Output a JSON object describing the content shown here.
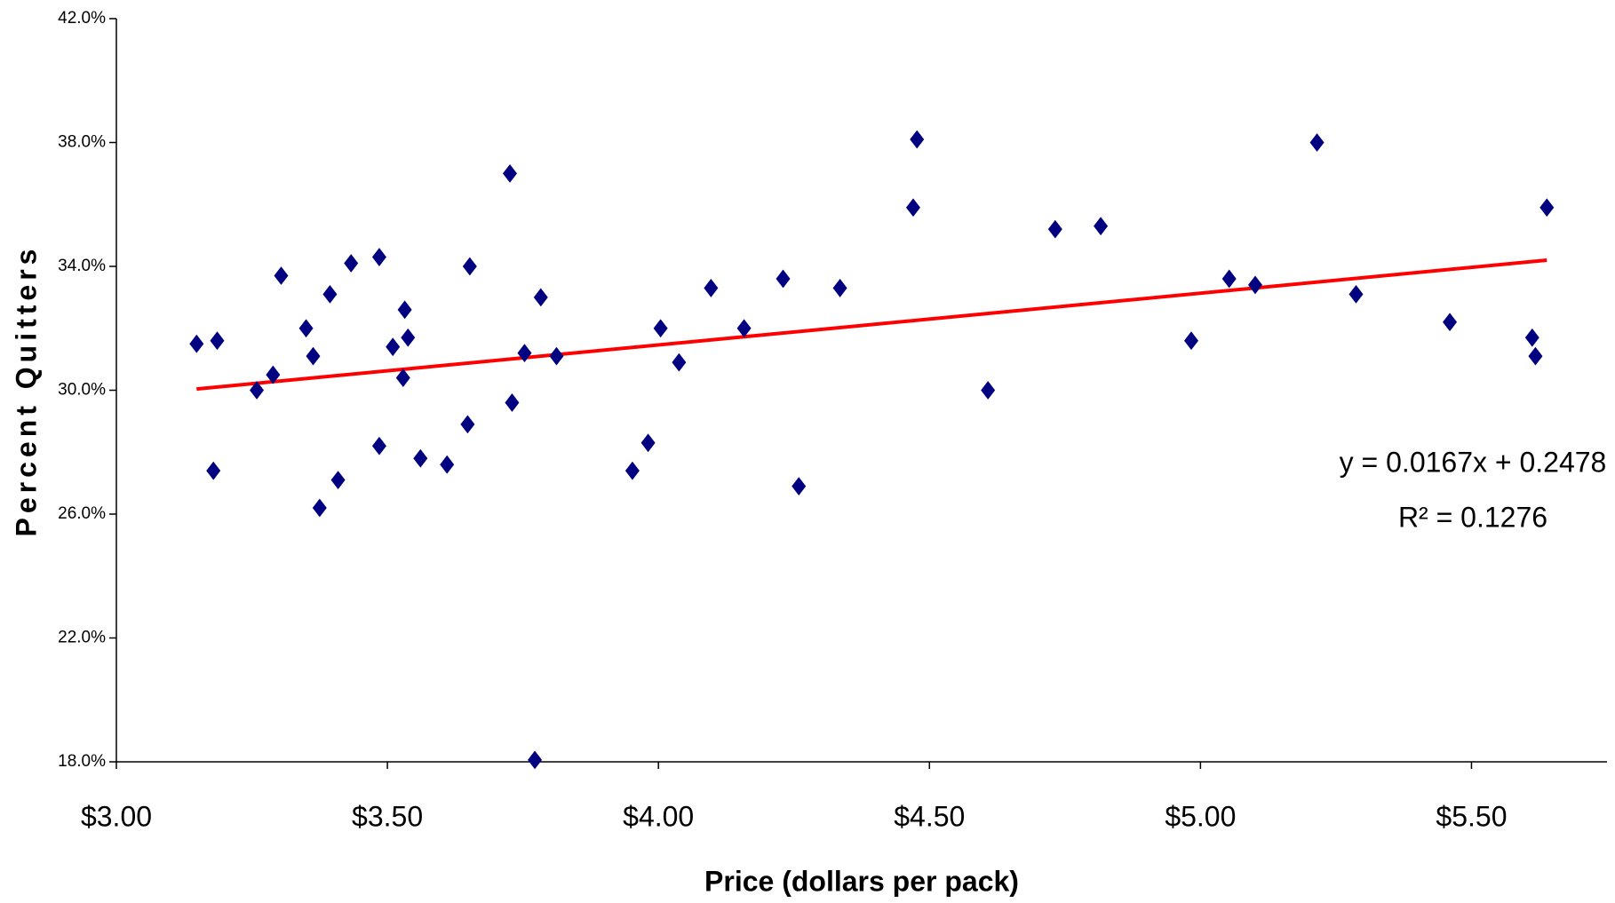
{
  "chart_data": {
    "type": "scatter",
    "x_label": "Price (dollars per pack)",
    "y_label": "Percent Quitters",
    "xlim": [
      3,
      5.75
    ],
    "ylim": [
      18,
      42
    ],
    "xticks": [
      {
        "value": 3,
        "label": "$3.00"
      },
      {
        "value": 3.5,
        "label": "$3.50"
      },
      {
        "value": 4,
        "label": "$4.00"
      },
      {
        "value": 4.5,
        "label": "$4.50"
      },
      {
        "value": 5,
        "label": "$5.00"
      },
      {
        "value": 5.5,
        "label": "$5.50"
      }
    ],
    "yticks": [
      {
        "value": 18,
        "label": "18.0%"
      },
      {
        "value": 22,
        "label": "22.0%"
      },
      {
        "value": 26,
        "label": "26.0%"
      },
      {
        "value": 30,
        "label": "30.0%"
      },
      {
        "value": 34,
        "label": "34.0%"
      },
      {
        "value": 38,
        "label": "38.0%"
      },
      {
        "value": 42,
        "label": "42.0%"
      }
    ],
    "color": "#000080",
    "x": [
      3.148,
      3.179,
      3.186,
      3.259,
      3.289,
      3.304,
      3.35,
      3.363,
      3.375,
      3.394,
      3.409,
      3.433,
      3.485,
      3.485,
      3.51,
      3.529,
      3.532,
      3.538,
      3.561,
      3.61,
      3.648,
      3.652,
      3.726,
      3.73,
      3.753,
      3.772,
      3.783,
      3.812,
      3.952,
      3.981,
      4.004,
      4.038,
      4.097,
      4.158,
      4.23,
      4.259,
      4.335,
      4.47,
      4.477,
      4.608,
      4.732,
      4.816,
      4.983,
      5.053,
      5.101,
      5.215,
      5.287,
      5.46,
      5.612,
      5.618,
      5.639
    ],
    "values": [
      31.5,
      27.4,
      31.6,
      30.0,
      30.5,
      33.7,
      32.0,
      31.1,
      26.2,
      33.1,
      27.1,
      34.1,
      34.3,
      28.2,
      31.4,
      30.4,
      32.6,
      31.7,
      27.8,
      27.6,
      28.9,
      34.0,
      37.0,
      29.6,
      31.2,
      18.06,
      33.0,
      31.1,
      27.4,
      28.3,
      32.0,
      30.9,
      33.3,
      32.0,
      33.6,
      26.9,
      33.3,
      35.9,
      38.1,
      30.0,
      35.2,
      35.3,
      31.6,
      33.6,
      33.4,
      38.0,
      33.1,
      32.2,
      31.7,
      31.1,
      35.9
    ],
    "trendline": {
      "color": "#ff0000",
      "x": [
        3.148,
        5.639
      ],
      "values": [
        30.04,
        34.2
      ]
    },
    "annotations": [
      "y = 0.0167x + 0.2478",
      "R² = 0.1276"
    ]
  }
}
